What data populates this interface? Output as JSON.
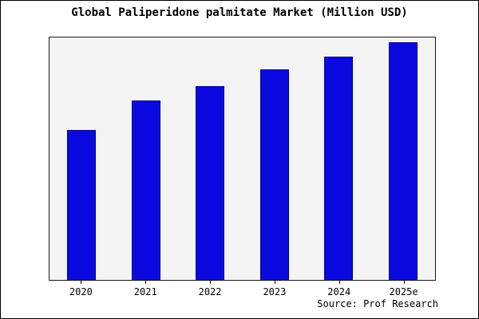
{
  "title": "Global Paliperidone palmitate Market (Million USD)",
  "source": "Source: Prof Research",
  "colors": {
    "bar": "#0a0ae0",
    "bar_border": "#000090",
    "plot_background": "#f4f4f4",
    "plot_border": "#1a1a1a"
  },
  "chart_data": {
    "type": "bar",
    "title": "Global Paliperidone palmitate Market (Million USD)",
    "categories": [
      "2020",
      "2021",
      "2022",
      "2023",
      "2024",
      "2025e"
    ],
    "values": [
      62,
      74,
      80,
      87,
      92,
      98
    ],
    "xlabel": "",
    "ylabel": "",
    "ylim": [
      0,
      100
    ],
    "grid": false,
    "legend": false,
    "value_scale": "estimated percent of plot height (no y-axis labels shown)",
    "annotation": "Source: Prof Research"
  }
}
